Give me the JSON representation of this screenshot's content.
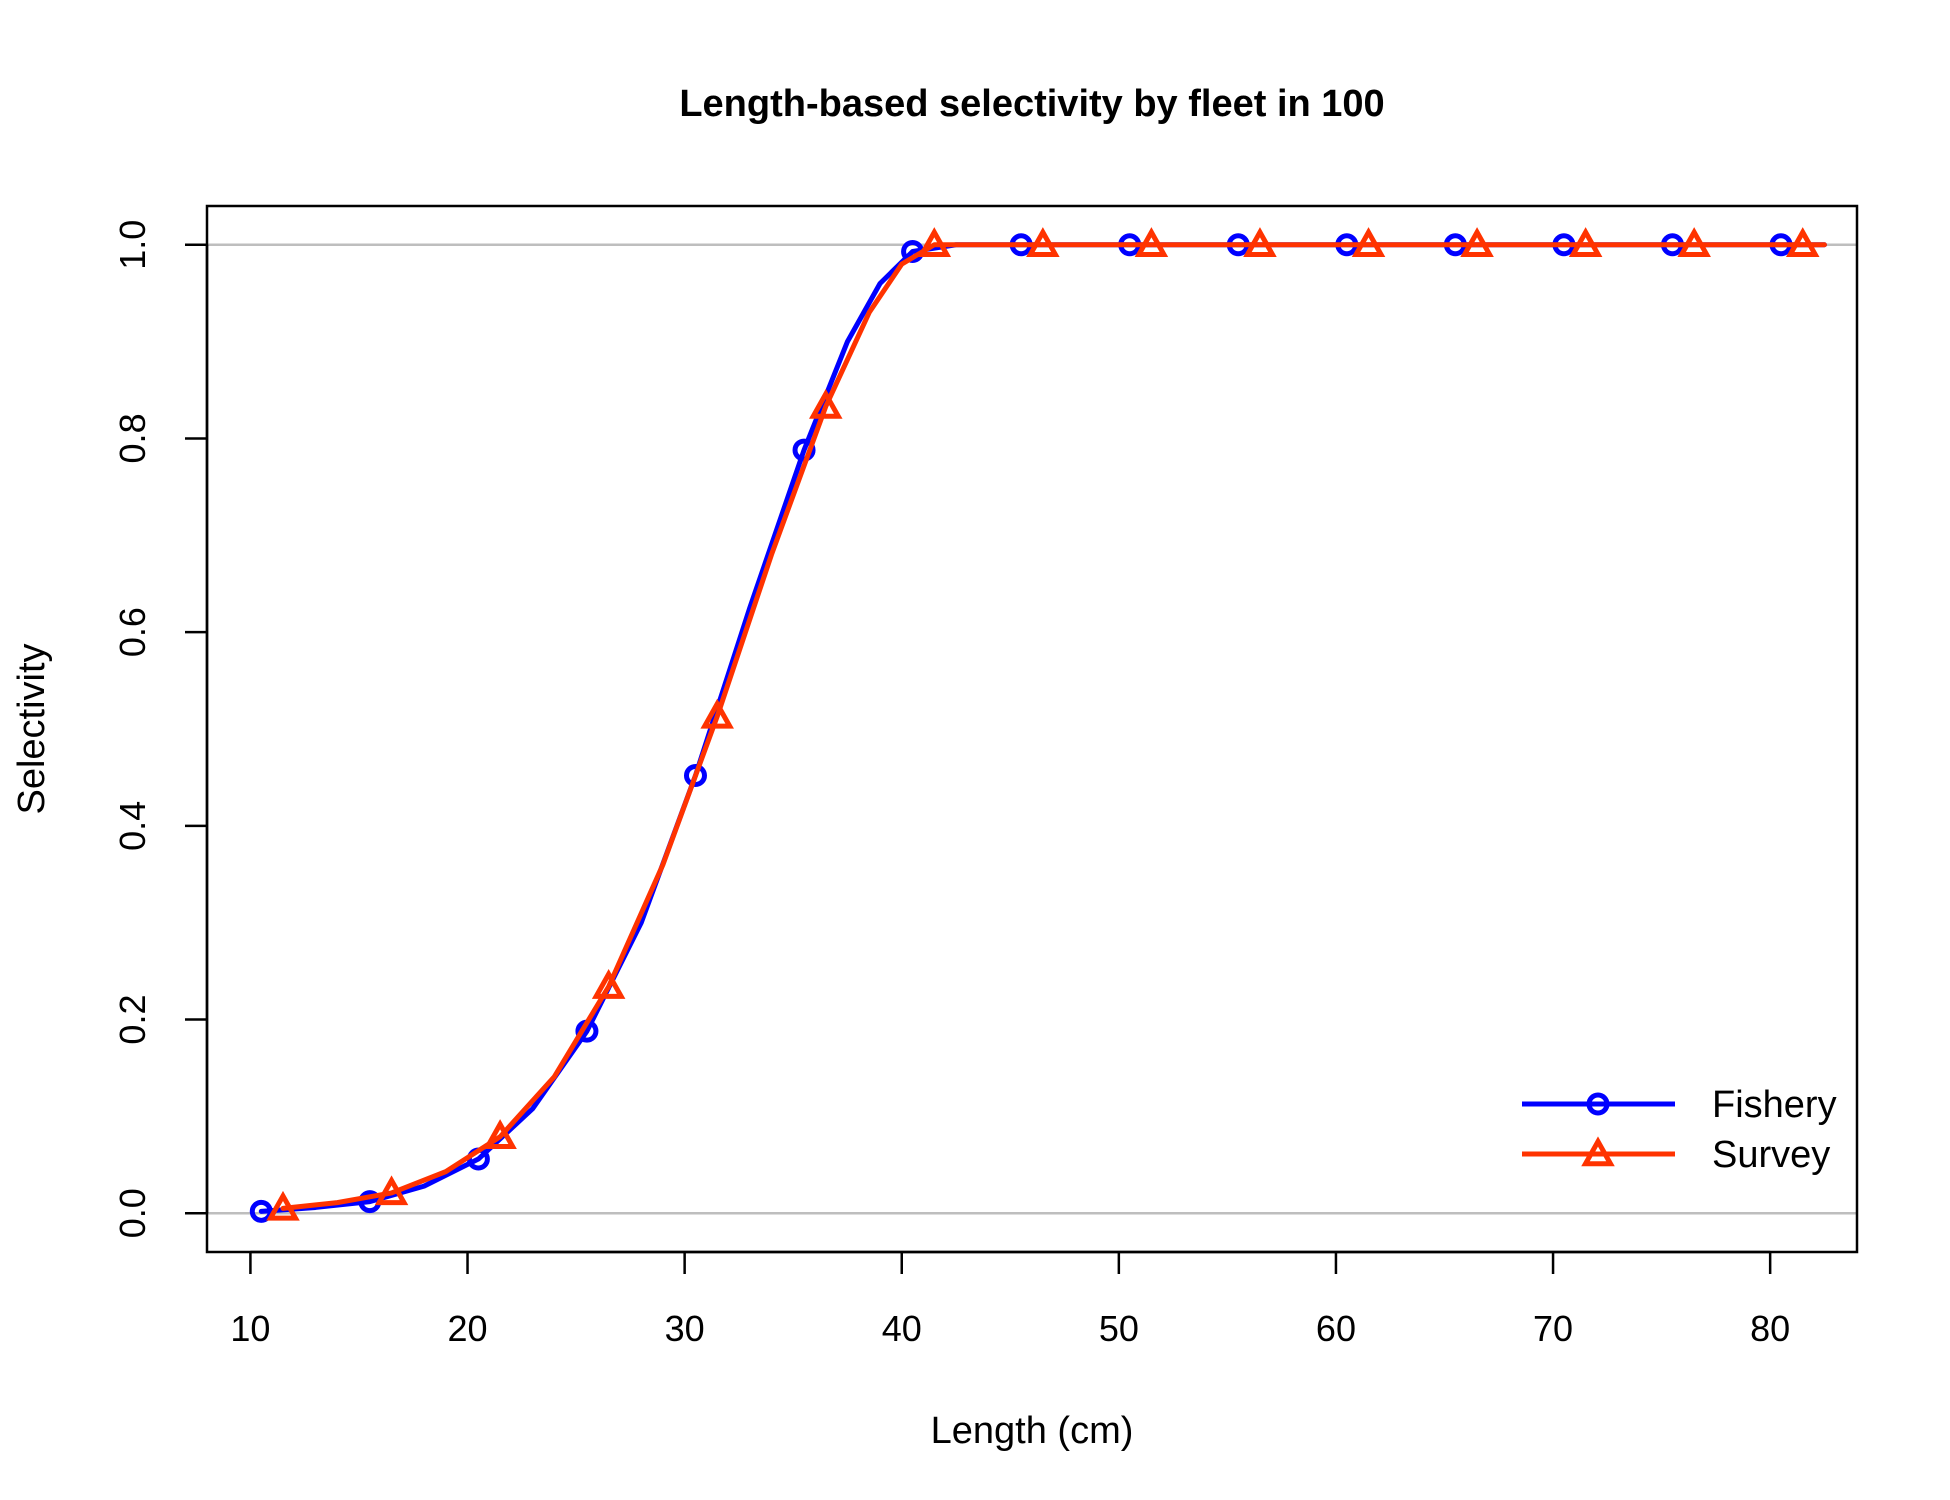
{
  "chart_data": {
    "type": "line",
    "title": "Length-based selectivity by fleet in 100",
    "xlabel": "Length (cm)",
    "ylabel": "Selectivity",
    "xlim": [
      8,
      84
    ],
    "ylim": [
      -0.04,
      1.04
    ],
    "xticks": [
      10,
      20,
      30,
      40,
      50,
      60,
      70,
      80
    ],
    "xtick_labels": [
      "10",
      "20",
      "30",
      "40",
      "50",
      "60",
      "70",
      "80"
    ],
    "yticks": [
      0.0,
      0.2,
      0.4,
      0.6,
      0.8,
      1.0
    ],
    "ytick_labels": [
      "0.0",
      "0.2",
      "0.4",
      "0.6",
      "0.8",
      "1.0"
    ],
    "reference_lines_y": [
      0,
      1
    ],
    "legend_position": "bottom-right",
    "series": [
      {
        "name": "Fishery",
        "color": "#0000FF",
        "marker": "circle",
        "x": [
          10.5,
          13,
          15.5,
          18,
          20.5,
          23,
          25.5,
          28,
          30.5,
          33,
          35.5,
          37.5,
          39,
          40.5,
          42.5,
          45.5,
          50.5,
          55.5,
          60.5,
          65.5,
          70.5,
          75.5,
          80.5,
          82.5
        ],
        "y": [
          0.002,
          0.006,
          0.012,
          0.028,
          0.056,
          0.108,
          0.188,
          0.3,
          0.452,
          0.625,
          0.788,
          0.9,
          0.96,
          0.993,
          1.0,
          1.0,
          1.0,
          1.0,
          1.0,
          1.0,
          1.0,
          1.0,
          1.0,
          1.0
        ],
        "marker_x": [
          10.5,
          15.5,
          20.5,
          25.5,
          30.5,
          35.5,
          40.5,
          45.5,
          50.5,
          55.5,
          60.5,
          65.5,
          70.5,
          75.5,
          80.5
        ],
        "marker_y": [
          0.002,
          0.012,
          0.056,
          0.188,
          0.452,
          0.788,
          0.993,
          1.0,
          1.0,
          1.0,
          1.0,
          1.0,
          1.0,
          1.0,
          1.0
        ]
      },
      {
        "name": "Survey",
        "color": "#FF3300",
        "marker": "triangle",
        "x": [
          11.5,
          14,
          16.5,
          19,
          21.5,
          24,
          26.5,
          29,
          31.5,
          34,
          36.5,
          38.5,
          40,
          41.5,
          45,
          46.5,
          51.5,
          56.5,
          61.5,
          66.5,
          71.5,
          76.5,
          81.5,
          82.5
        ],
        "y": [
          0.005,
          0.011,
          0.021,
          0.043,
          0.079,
          0.141,
          0.234,
          0.36,
          0.513,
          0.68,
          0.833,
          0.93,
          0.98,
          1.0,
          1.0,
          1.0,
          1.0,
          1.0,
          1.0,
          1.0,
          1.0,
          1.0,
          1.0,
          1.0
        ],
        "marker_x": [
          11.5,
          16.5,
          21.5,
          26.5,
          31.5,
          36.5,
          41.5,
          46.5,
          51.5,
          56.5,
          61.5,
          66.5,
          71.5,
          76.5,
          81.5
        ],
        "marker_y": [
          0.005,
          0.021,
          0.079,
          0.234,
          0.513,
          0.833,
          1.0,
          1.0,
          1.0,
          1.0,
          1.0,
          1.0,
          1.0,
          1.0,
          1.0
        ]
      }
    ]
  }
}
